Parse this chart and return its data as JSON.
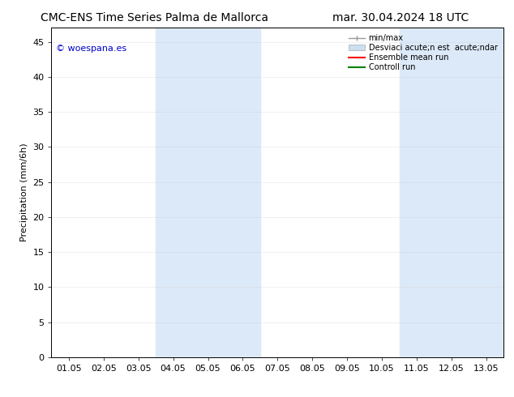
{
  "title_left": "CMC-ENS Time Series Palma de Mallorca",
  "title_right": "mar. 30.04.2024 18 UTC",
  "ylabel": "Precipitation (mm/6h)",
  "xlabel_ticks": [
    "01.05",
    "02.05",
    "03.05",
    "04.05",
    "05.05",
    "06.05",
    "07.05",
    "08.05",
    "09.05",
    "10.05",
    "11.05",
    "12.05",
    "13.05"
  ],
  "ylim": [
    0,
    47
  ],
  "yticks": [
    0,
    5,
    10,
    15,
    20,
    25,
    30,
    35,
    40,
    45
  ],
  "shaded_regions": [
    {
      "xstart": 3,
      "xend": 5,
      "color": "#dce9f8"
    },
    {
      "xstart": 10,
      "xend": 12,
      "color": "#dce9f8"
    }
  ],
  "watermark_text": "© woespana.es",
  "watermark_color": "#0000cc",
  "bg_color": "#ffffff",
  "plot_bg_color": "#ffffff",
  "border_color": "#000000",
  "grid_color": "#cccccc",
  "font_size": 8,
  "title_font_size": 10,
  "legend_minmax_color": "#999999",
  "legend_band_color": "#ccdff0",
  "legend_ensemble_color": "#ff0000",
  "legend_control_color": "#008000"
}
